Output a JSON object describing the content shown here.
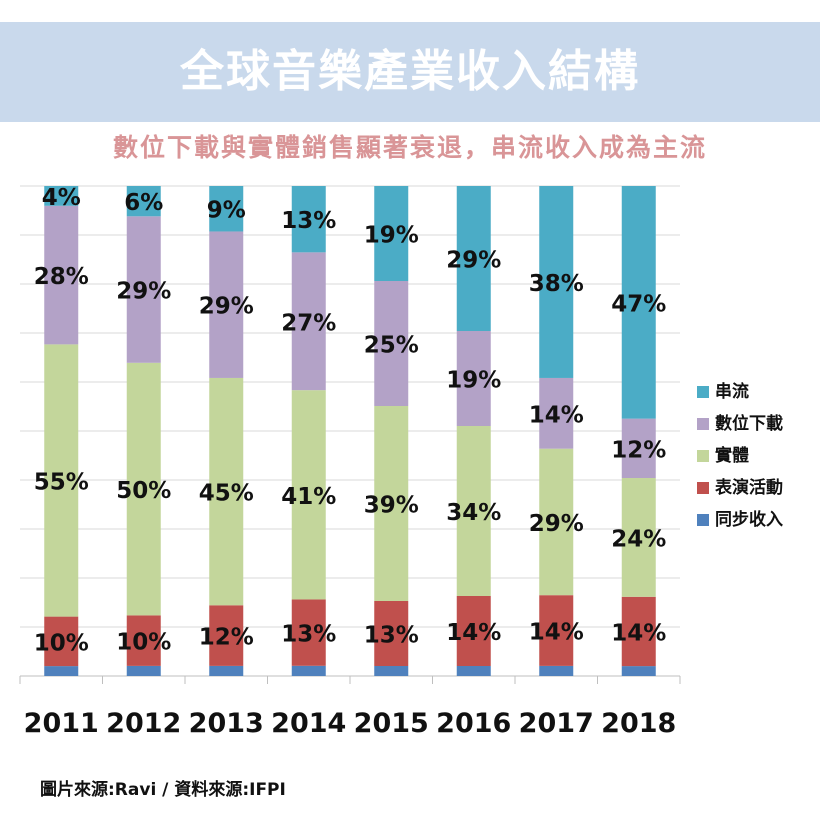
{
  "title": "全球音樂產業收入結構",
  "subtitle": "數位下載與實體銷售顯著衰退，串流收入成為主流",
  "source": "圖片來源:Ravi  /  資料來源:IFPI",
  "colors": {
    "streaming": "#4bacc6",
    "download": "#b3a2c7",
    "physical": "#c3d69b",
    "performance": "#c0504d",
    "sync": "#4f81bd",
    "title_band": "#c9d9ec",
    "subtitle": "#d99597"
  },
  "chart_data": {
    "type": "bar",
    "stacked": true,
    "normalized": true,
    "categories": [
      "2011",
      "2012",
      "2013",
      "2014",
      "2015",
      "2016",
      "2017",
      "2018"
    ],
    "series": [
      {
        "name": "同步收入",
        "color": "#4f81bd",
        "values": [
          2,
          2,
          2,
          2,
          2,
          2,
          2,
          2
        ],
        "labels": [
          "",
          "",
          "",
          "",
          "",
          "",
          "",
          ""
        ]
      },
      {
        "name": "表演活動",
        "color": "#c0504d",
        "values": [
          10,
          10,
          12,
          13,
          13,
          14,
          14,
          14
        ],
        "labels": [
          "10%",
          "10%",
          "12%",
          "13%",
          "13%",
          "14%",
          "14%",
          "14%"
        ]
      },
      {
        "name": "實體",
        "color": "#c3d69b",
        "values": [
          55,
          50,
          45,
          41,
          39,
          34,
          29,
          24
        ],
        "labels": [
          "55%",
          "50%",
          "45%",
          "41%",
          "39%",
          "34%",
          "29%",
          "24%"
        ]
      },
      {
        "name": "數位下載",
        "color": "#b3a2c7",
        "values": [
          28,
          29,
          29,
          27,
          25,
          19,
          14,
          12
        ],
        "labels": [
          "28%",
          "29%",
          "29%",
          "27%",
          "25%",
          "19%",
          "14%",
          "12%"
        ]
      },
      {
        "name": "串流",
        "color": "#4bacc6",
        "values": [
          4,
          6,
          9,
          13,
          19,
          29,
          38,
          47
        ],
        "labels": [
          "4%",
          "6%",
          "9%",
          "13%",
          "19%",
          "29%",
          "38%",
          "47%"
        ]
      }
    ],
    "legend_order": [
      "串流",
      "數位下載",
      "實體",
      "表演活動",
      "同步收入"
    ],
    "legend_position": "right",
    "ylim": [
      0,
      100
    ],
    "grid": true
  }
}
